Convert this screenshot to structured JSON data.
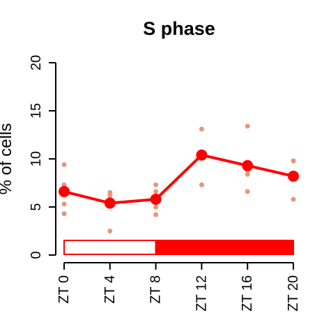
{
  "chart_data": {
    "type": "line",
    "title": "S phase",
    "ylabel": "% of cells",
    "xlabel": "",
    "ylim": [
      0,
      20
    ],
    "yticks": [
      "0",
      "5",
      "10",
      "15",
      "20"
    ],
    "categories": [
      "ZT 0",
      "ZT 4",
      "ZT 8",
      "ZT 12",
      "ZT 16",
      "ZT 20"
    ],
    "series": [
      {
        "values": [
          6.6,
          5.4,
          5.8,
          10.4,
          9.3,
          8.2
        ],
        "color": "#ff0000"
      }
    ],
    "replicates": [
      [
        9.4,
        7.3,
        6.5,
        5.3,
        4.3
      ],
      [
        6.5,
        6.2,
        5.8,
        5.3,
        2.5
      ],
      [
        7.3,
        6.6,
        5.9,
        5.0,
        4.2
      ],
      [
        13.1,
        10.7,
        10.3,
        7.3
      ],
      [
        13.4,
        9.3,
        8.8,
        8.4,
        6.6
      ],
      [
        9.8,
        8.5,
        8.2,
        8.0,
        5.8
      ]
    ],
    "replicate_color": "#e8957a",
    "light_dark_bar": {
      "light_color": "#ffffff",
      "dark_color": "#ff0000",
      "segments": [
        {
          "from": 0,
          "to": 8,
          "state": "light"
        },
        {
          "from": 8,
          "to": 20,
          "state": "dark"
        }
      ]
    },
    "grid": false,
    "legend": "none"
  }
}
